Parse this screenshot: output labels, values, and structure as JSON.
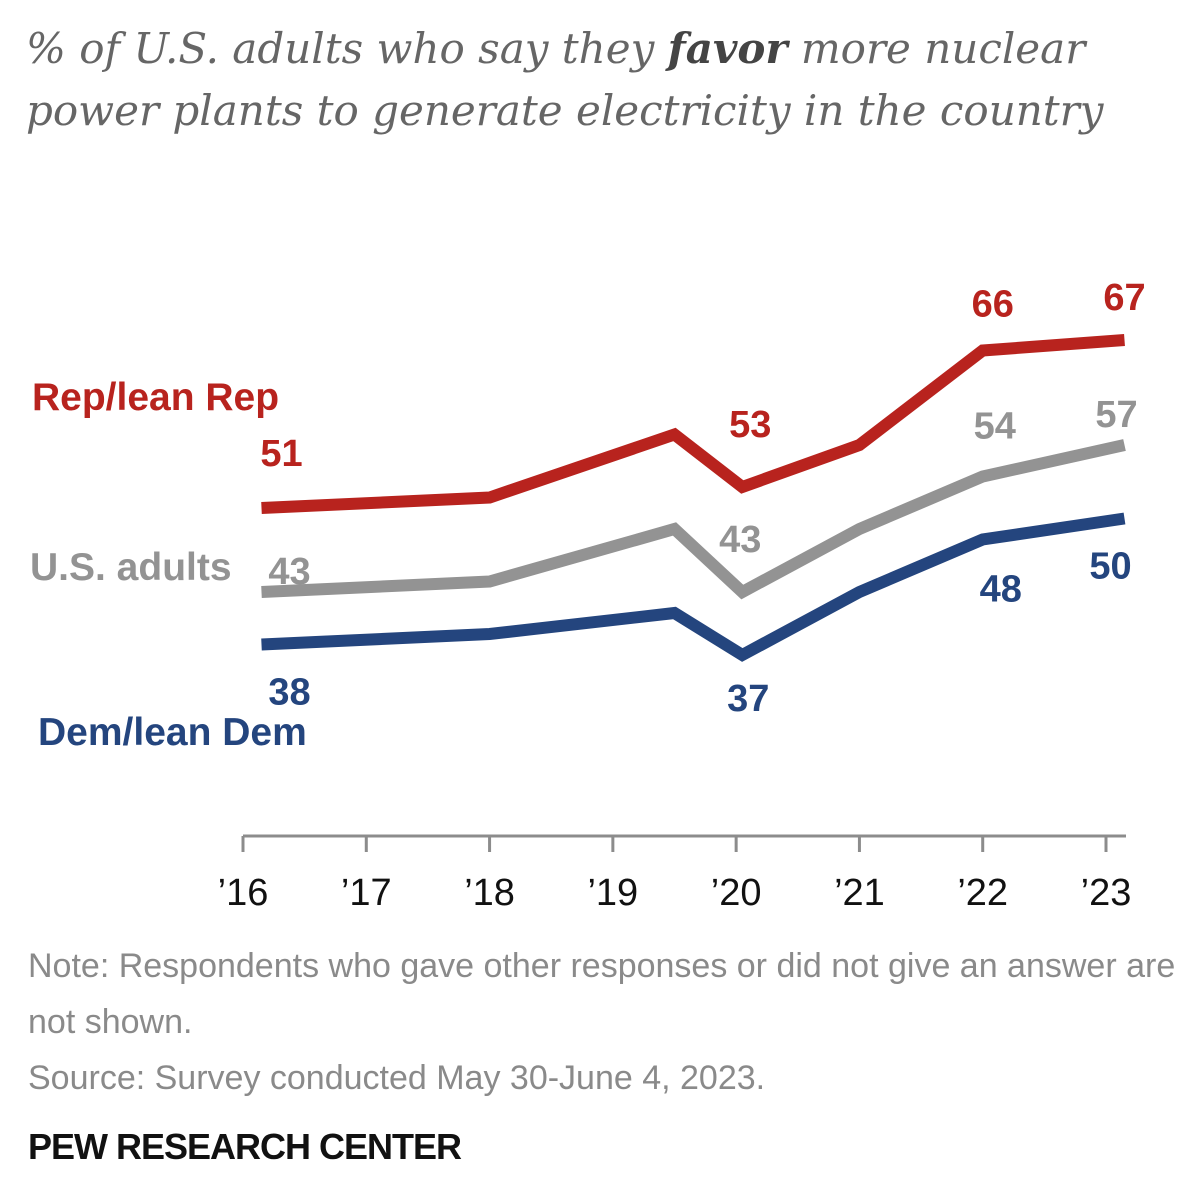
{
  "title": {
    "before": "% of U.S. adults who say they ",
    "emphasis": "favor",
    "after": " more nuclear power plants to generate electricity in the country"
  },
  "footer": {
    "note": "Note: Respondents who gave other responses or did not give an answer are not shown.",
    "source": "Source: Survey conducted May 30-June 4, 2023.",
    "brand": "PEW RESEARCH CENTER"
  },
  "chart_data": {
    "type": "line",
    "x_ticks": [
      "’16",
      "’17",
      "’18",
      "’19",
      "’20",
      "’21",
      "’22",
      "’23"
    ],
    "x_tick_values": [
      2016,
      2017,
      2018,
      2019,
      2020,
      2021,
      2022,
      2023
    ],
    "x": [
      2016.15,
      2018.0,
      2019.5,
      2020.05,
      2021.0,
      2022.0,
      2023.15
    ],
    "series": [
      {
        "name": "Rep/lean Rep",
        "color": "#b8231e",
        "values": [
          51,
          52,
          58,
          53,
          57,
          66,
          67
        ],
        "labels": [
          "51",
          "",
          "",
          "53",
          "",
          "66",
          "67"
        ]
      },
      {
        "name": "U.S. adults",
        "color": "#939393",
        "values": [
          43,
          44,
          49,
          43,
          49,
          54,
          57
        ],
        "labels": [
          "43",
          "",
          "",
          "43",
          "",
          "54",
          "57"
        ]
      },
      {
        "name": "Dem/lean Dem",
        "color": "#24457e",
        "values": [
          38,
          39,
          41,
          37,
          43,
          48,
          50
        ],
        "labels": [
          "38",
          "",
          "",
          "37",
          "",
          "48",
          "50"
        ]
      }
    ],
    "grid": false,
    "legend": "inline-left"
  }
}
